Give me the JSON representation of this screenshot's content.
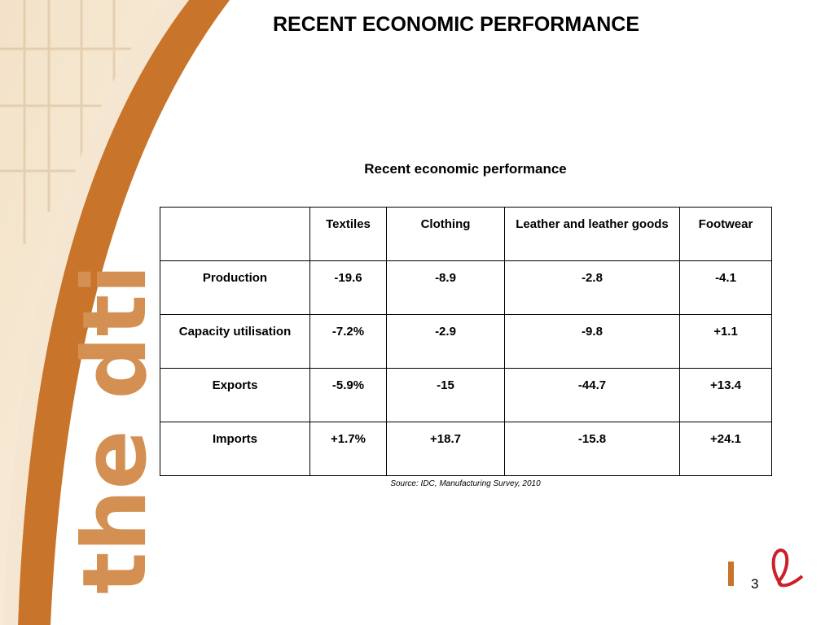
{
  "header": {
    "title": "RECENT ECONOMIC PERFORMANCE"
  },
  "logo": {
    "text": "the dti"
  },
  "table": {
    "caption": "Recent economic performance",
    "columns": [
      "",
      "Textiles",
      "Clothing",
      "Leather and leather goods",
      "Footwear"
    ],
    "rows": [
      [
        "Production",
        "-19.6",
        "-8.9",
        "-2.8",
        "-4.1"
      ],
      [
        "Capacity utilisation",
        "-7.2%",
        "-2.9",
        "-9.8",
        "+1.1"
      ],
      [
        "Exports",
        "-5.9%",
        "-15",
        "-44.7",
        "+13.4"
      ],
      [
        "Imports",
        "+1.7%",
        "+18.7",
        "-15.8",
        "+24.1"
      ]
    ]
  },
  "source": "Source: IDC, Manufacturing Survey, 2010",
  "page_number": "3"
}
